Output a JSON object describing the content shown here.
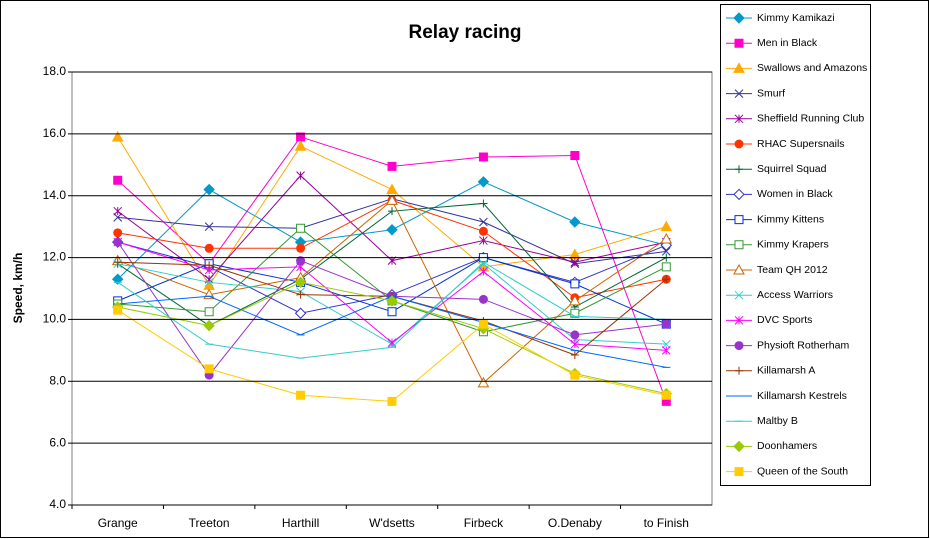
{
  "chart_data": {
    "type": "line",
    "title": "Relay racing",
    "y_label": "Speed, km/h",
    "categories": [
      "Grange",
      "Treeton",
      "Harthill",
      "W'dsetts",
      "Firbeck",
      "O.Denaby",
      "to Finish"
    ],
    "ylim": [
      4,
      18
    ],
    "yticks": [
      {
        "value": 4,
        "label": "4.0"
      },
      {
        "value": 6,
        "label": "6.0"
      },
      {
        "value": 8,
        "label": "8.0"
      },
      {
        "value": 10,
        "label": "10.0"
      },
      {
        "value": 12,
        "label": "12.0"
      },
      {
        "value": 14,
        "label": "14.0"
      },
      {
        "value": 16,
        "label": "16.0"
      },
      {
        "value": 18,
        "label": "18.0"
      }
    ],
    "grid": true,
    "legend": "right",
    "series": [
      {
        "name": "Kimmy Kamikazi",
        "color": "#0099cc",
        "marker": "diamond",
        "filled": true,
        "values": [
          11.3,
          14.2,
          12.5,
          12.9,
          14.45,
          13.15,
          12.4
        ]
      },
      {
        "name": "Men in Black",
        "color": "#ff00cc",
        "marker": "square",
        "filled": true,
        "values": [
          14.5,
          11.8,
          15.9,
          14.95,
          15.25,
          15.3,
          7.35
        ]
      },
      {
        "name": "Swallows and Amazons",
        "color": "#ffaa00",
        "marker": "triangle",
        "filled": true,
        "values": [
          15.9,
          11.1,
          15.6,
          14.2,
          11.7,
          12.1,
          13.0
        ]
      },
      {
        "name": "Smurf",
        "color": "#333399",
        "marker": "x",
        "filled": false,
        "values": [
          13.3,
          13.0,
          12.95,
          13.9,
          13.15,
          11.8,
          12.2
        ]
      },
      {
        "name": "Sheffield Running Club",
        "color": "#990099",
        "marker": "star",
        "filled": false,
        "values": [
          13.5,
          11.3,
          14.65,
          11.9,
          12.55,
          11.85,
          12.5
        ]
      },
      {
        "name": "RHAC Supersnails",
        "color": "#ff3300",
        "marker": "circle",
        "filled": true,
        "values": [
          12.8,
          12.3,
          12.3,
          13.85,
          12.85,
          10.7,
          11.3
        ]
      },
      {
        "name": "Squirrel Squad",
        "color": "#006633",
        "marker": "plus",
        "filled": false,
        "values": [
          11.8,
          9.8,
          11.3,
          13.5,
          13.75,
          10.4,
          12.0
        ]
      },
      {
        "name": "Women in Black",
        "color": "#3333cc",
        "marker": "diamond",
        "filled": false,
        "values": [
          12.5,
          11.7,
          10.2,
          10.8,
          12.0,
          11.2,
          12.4
        ]
      },
      {
        "name": "Kimmy Kittens",
        "color": "#0033cc",
        "marker": "square",
        "filled": false,
        "values": [
          10.6,
          11.8,
          11.2,
          10.25,
          12.0,
          11.15,
          9.85
        ]
      },
      {
        "name": "Kimmy Krapers",
        "color": "#339933",
        "marker": "square",
        "filled": false,
        "values": [
          10.5,
          10.25,
          12.95,
          10.6,
          9.6,
          10.2,
          11.7
        ]
      },
      {
        "name": "Team QH 2012",
        "color": "#cc6600",
        "marker": "triangle",
        "filled": false,
        "values": [
          11.9,
          10.8,
          11.35,
          13.85,
          7.95,
          10.6,
          12.6
        ]
      },
      {
        "name": "Access Warriors",
        "color": "#33cccc",
        "marker": "x",
        "filled": false,
        "values": [
          11.8,
          11.2,
          10.9,
          9.2,
          11.8,
          9.35,
          9.2
        ]
      },
      {
        "name": "DVC Sports",
        "color": "#ff00ff",
        "marker": "star",
        "filled": false,
        "values": [
          12.5,
          11.6,
          11.7,
          9.25,
          11.55,
          9.2,
          9.0
        ]
      },
      {
        "name": "Physioft Rotherham",
        "color": "#9933cc",
        "marker": "circle",
        "filled": true,
        "values": [
          12.5,
          8.2,
          11.9,
          10.75,
          10.65,
          9.5,
          9.85
        ]
      },
      {
        "name": "Killamarsh A",
        "color": "#993300",
        "marker": "plus",
        "filled": false,
        "values": [
          11.85,
          11.75,
          10.8,
          10.75,
          9.95,
          8.85,
          11.3
        ]
      },
      {
        "name": "Killamarsh Kestrels",
        "color": "#0066ff",
        "marker": "dash",
        "filled": false,
        "values": [
          10.5,
          10.75,
          9.5,
          10.75,
          9.9,
          9.0,
          8.45
        ]
      },
      {
        "name": "Maltby B",
        "color": "#33cccc",
        "marker": "dash",
        "filled": false,
        "values": [
          11.2,
          9.2,
          8.75,
          9.1,
          11.85,
          10.1,
          10.0
        ]
      },
      {
        "name": "Doonhamers",
        "color": "#99cc00",
        "marker": "diamond",
        "filled": true,
        "values": [
          10.4,
          9.8,
          11.2,
          10.6,
          9.7,
          8.25,
          7.6
        ]
      },
      {
        "name": "Queen of the South",
        "color": "#ffcc00",
        "marker": "square",
        "filled": true,
        "values": [
          10.3,
          8.4,
          7.55,
          7.35,
          9.85,
          8.2,
          7.55
        ]
      }
    ]
  }
}
